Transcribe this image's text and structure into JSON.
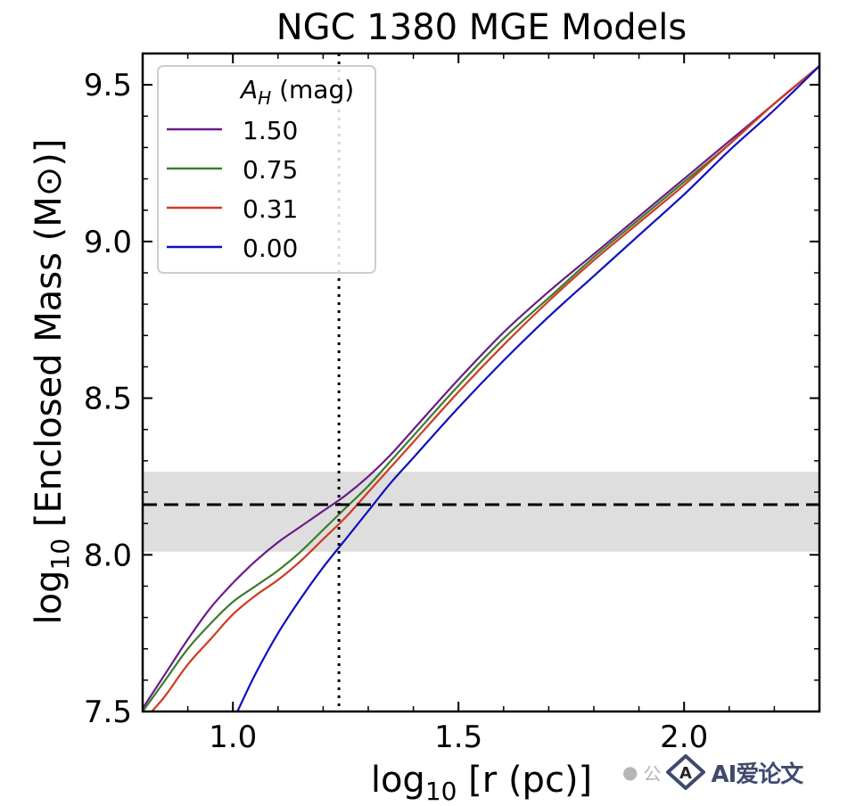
{
  "chart_data": {
    "type": "line",
    "title": "NGC 1380 MGE Models",
    "xlabel_main": "log",
    "xlabel_sub": "10",
    "xlabel_rest": " [r (pc)]",
    "ylabel_main": "log",
    "ylabel_sub": "10",
    "ylabel_rest": " [Enclosed Mass (M",
    "ylabel_sym": "⊙",
    "ylabel_end": ")]",
    "xlim": [
      0.8,
      2.3
    ],
    "ylim": [
      7.5,
      9.6
    ],
    "xticks": [
      1.0,
      1.5,
      2.0
    ],
    "xtick_labels": [
      "1.0",
      "1.5",
      "2.0"
    ],
    "yticks": [
      7.5,
      8.0,
      8.5,
      9.0,
      9.5
    ],
    "ytick_labels": [
      "7.5",
      "8.0",
      "8.5",
      "9.0",
      "9.5"
    ],
    "legend_title_var": "A",
    "legend_title_sub": "H",
    "legend_title_rest": " (mag)",
    "legend_position": "top-left",
    "grid": false,
    "series": [
      {
        "name": "1.50",
        "color": "#6a1b8a",
        "x": [
          0.8,
          0.85,
          0.9,
          0.95,
          1.0,
          1.05,
          1.1,
          1.15,
          1.2,
          1.25,
          1.3,
          1.35,
          1.4,
          1.5,
          1.6,
          1.7,
          1.8,
          1.9,
          2.0,
          2.1,
          2.2,
          2.3
        ],
        "y": [
          7.51,
          7.62,
          7.73,
          7.83,
          7.91,
          7.98,
          8.04,
          8.09,
          8.14,
          8.19,
          8.25,
          8.32,
          8.4,
          8.56,
          8.71,
          8.84,
          8.96,
          9.08,
          9.2,
          9.32,
          9.44,
          9.56
        ]
      },
      {
        "name": "0.75",
        "color": "#3a7d2a",
        "x": [
          0.8,
          0.85,
          0.9,
          0.95,
          1.0,
          1.05,
          1.1,
          1.15,
          1.2,
          1.25,
          1.3,
          1.35,
          1.4,
          1.5,
          1.6,
          1.7,
          1.8,
          1.9,
          2.0,
          2.1,
          2.2,
          2.3
        ],
        "y": [
          7.5,
          7.6,
          7.7,
          7.78,
          7.85,
          7.9,
          7.95,
          8.01,
          8.08,
          8.15,
          8.22,
          8.3,
          8.38,
          8.54,
          8.69,
          8.82,
          8.95,
          9.07,
          9.19,
          9.31,
          9.44,
          9.56
        ]
      },
      {
        "name": "0.31",
        "color": "#d03a22",
        "x": [
          0.82,
          0.85,
          0.9,
          0.95,
          1.0,
          1.05,
          1.1,
          1.15,
          1.2,
          1.25,
          1.3,
          1.35,
          1.4,
          1.5,
          1.6,
          1.7,
          1.8,
          1.9,
          2.0,
          2.1,
          2.2,
          2.3
        ],
        "y": [
          7.5,
          7.55,
          7.65,
          7.73,
          7.81,
          7.87,
          7.92,
          7.98,
          8.05,
          8.12,
          8.2,
          8.28,
          8.36,
          8.52,
          8.67,
          8.81,
          8.94,
          9.06,
          9.18,
          9.31,
          9.44,
          9.56
        ]
      },
      {
        "name": "0.00",
        "color": "#1010c0",
        "x": [
          1.01,
          1.05,
          1.1,
          1.15,
          1.2,
          1.25,
          1.3,
          1.35,
          1.4,
          1.5,
          1.6,
          1.7,
          1.8,
          1.9,
          2.0,
          2.1,
          2.2,
          2.3
        ],
        "y": [
          7.5,
          7.62,
          7.75,
          7.86,
          7.96,
          8.05,
          8.14,
          8.23,
          8.31,
          8.47,
          8.62,
          8.76,
          8.89,
          9.02,
          9.15,
          9.29,
          9.42,
          9.56
        ]
      }
    ],
    "reference_hline": {
      "y": 8.16,
      "band": [
        8.01,
        8.265
      ],
      "band_color": "#dedede",
      "style": "dashed"
    },
    "reference_vline": {
      "x": 1.235,
      "style": "dotted"
    }
  },
  "watermark": {
    "symbol": "公",
    "text": "AI爱论文"
  }
}
